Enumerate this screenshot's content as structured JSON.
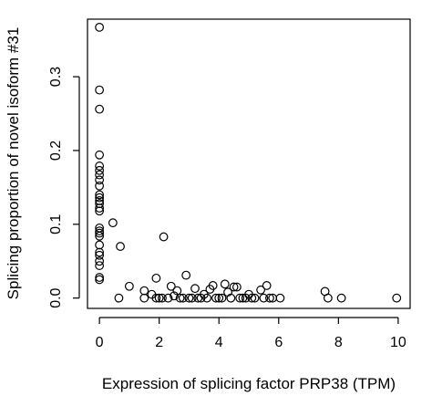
{
  "chart_data": {
    "type": "scatter",
    "title": "",
    "xlabel": "Expression of splicing factor PRP38 (TPM)",
    "ylabel": "Splicing proportion of novel isoform #31",
    "xlim": [
      -0.4,
      10.4
    ],
    "ylim": [
      -0.014,
      0.378
    ],
    "x_ticks": [
      0,
      2,
      4,
      6,
      8,
      10
    ],
    "x_tick_labels": [
      "0",
      "2",
      "4",
      "6",
      "8",
      "10"
    ],
    "y_ticks": [
      0.0,
      0.1,
      0.2,
      0.3
    ],
    "y_tick_labels": [
      "0.0",
      "0.1",
      "0.2",
      "0.3"
    ],
    "grid": false,
    "marker": "open-circle",
    "points": [
      [
        0.0,
        0.367
      ],
      [
        0.0,
        0.282
      ],
      [
        0.0,
        0.256
      ],
      [
        0.0,
        0.194
      ],
      [
        0.0,
        0.179
      ],
      [
        0.0,
        0.173
      ],
      [
        0.0,
        0.167
      ],
      [
        0.0,
        0.16
      ],
      [
        0.0,
        0.152
      ],
      [
        0.0,
        0.14
      ],
      [
        0.0,
        0.136
      ],
      [
        0.0,
        0.132
      ],
      [
        0.0,
        0.128
      ],
      [
        0.0,
        0.122
      ],
      [
        0.0,
        0.118
      ],
      [
        0.0,
        0.095
      ],
      [
        0.0,
        0.091
      ],
      [
        0.0,
        0.088
      ],
      [
        0.0,
        0.084
      ],
      [
        0.0,
        0.072
      ],
      [
        0.0,
        0.062
      ],
      [
        0.0,
        0.058
      ],
      [
        0.0,
        0.05
      ],
      [
        0.0,
        0.044
      ],
      [
        0.0,
        0.028
      ],
      [
        0.0,
        0.025
      ],
      [
        0.45,
        0.102
      ],
      [
        0.7,
        0.07
      ],
      [
        2.15,
        0.083
      ],
      [
        0.65,
        0.0
      ],
      [
        1.0,
        0.016
      ],
      [
        1.5,
        0.01
      ],
      [
        1.5,
        0.0
      ],
      [
        1.75,
        0.005
      ],
      [
        1.9,
        0.027
      ],
      [
        1.9,
        0.0
      ],
      [
        2.0,
        0.0
      ],
      [
        2.1,
        0.0
      ],
      [
        2.3,
        0.0
      ],
      [
        2.4,
        0.016
      ],
      [
        2.5,
        0.003
      ],
      [
        2.6,
        0.01
      ],
      [
        2.7,
        0.0
      ],
      [
        2.8,
        0.0
      ],
      [
        2.9,
        0.031
      ],
      [
        3.0,
        0.0
      ],
      [
        3.1,
        0.0
      ],
      [
        3.2,
        0.013
      ],
      [
        3.3,
        0.0
      ],
      [
        3.4,
        0.0
      ],
      [
        3.5,
        0.005
      ],
      [
        3.6,
        0.0
      ],
      [
        3.7,
        0.012
      ],
      [
        3.8,
        0.017
      ],
      [
        3.9,
        0.0
      ],
      [
        4.0,
        0.0
      ],
      [
        4.1,
        0.0
      ],
      [
        4.2,
        0.019
      ],
      [
        4.3,
        0.008
      ],
      [
        4.4,
        0.0
      ],
      [
        4.5,
        0.015
      ],
      [
        4.6,
        0.015
      ],
      [
        4.7,
        0.0
      ],
      [
        4.8,
        0.0
      ],
      [
        4.9,
        0.0
      ],
      [
        5.0,
        0.005
      ],
      [
        5.1,
        0.0
      ],
      [
        5.2,
        0.0
      ],
      [
        5.4,
        0.011
      ],
      [
        5.5,
        0.0
      ],
      [
        5.6,
        0.017
      ],
      [
        5.7,
        0.0
      ],
      [
        5.8,
        0.0
      ],
      [
        6.05,
        0.0
      ],
      [
        7.55,
        0.009
      ],
      [
        7.65,
        0.0
      ],
      [
        8.1,
        0.0
      ],
      [
        9.95,
        0.0
      ]
    ]
  }
}
